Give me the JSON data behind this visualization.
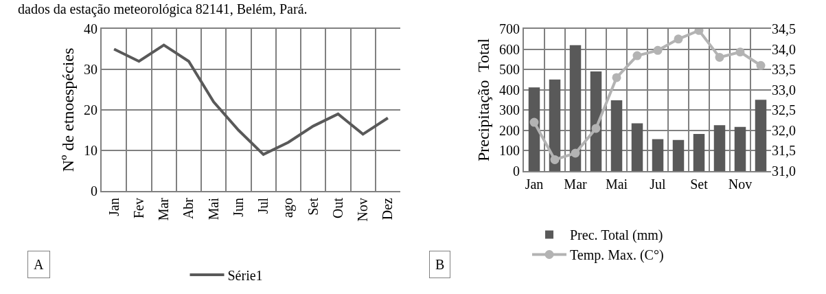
{
  "chart_data": [
    {
      "type": "line",
      "ylabel": "Nº de etnoespécies",
      "categories": [
        "Jan",
        "Fev",
        "Mar",
        "Abr",
        "Mai",
        "Jun",
        "Jul",
        "ago",
        "Set",
        "Out",
        "Nov",
        "Dez"
      ],
      "series": [
        {
          "name": "Série1",
          "color": "#595959",
          "values": [
            35,
            32,
            36,
            32,
            22,
            15,
            9,
            12,
            16,
            19,
            14,
            18
          ]
        }
      ],
      "ylim": [
        0,
        40
      ],
      "yticks": [
        0,
        10,
        20,
        30,
        40
      ],
      "grid": true,
      "legend": "bottom",
      "marker": "none",
      "line_style": "solid",
      "annotations": [
        "dados da estação meteorológica 82141, Belém, Pará.",
        "A"
      ]
    },
    {
      "type": "bar",
      "ylabel": "Precipitação  Total",
      "categories": [
        "Jan",
        null,
        "Mar",
        null,
        "Mai",
        null,
        "Jul",
        null,
        "Set",
        null,
        "Nov",
        null
      ],
      "series": [
        {
          "name": "Prec. Total (mm)",
          "color": "#595959",
          "type": "bar",
          "values": [
            412,
            451,
            620,
            490,
            348,
            235,
            157,
            153,
            183,
            226,
            217,
            351
          ]
        },
        {
          "name": "Temp. Max. (C°)",
          "color": "#b3b3b3",
          "type": "line",
          "axis": "y2",
          "values": [
            32.2,
            31.28,
            31.44,
            32.05,
            33.3,
            33.84,
            33.97,
            34.25,
            34.46,
            33.8,
            33.93,
            33.6
          ]
        }
      ],
      "ylim": [
        0,
        700
      ],
      "yticks": [
        0,
        100,
        200,
        300,
        400,
        500,
        600,
        700
      ],
      "y2lim": [
        31,
        34.5
      ],
      "y2ticks": [
        {
          "value": 31,
          "label": "31,0"
        },
        {
          "value": 31.5,
          "label": "31,5"
        },
        {
          "value": 32,
          "label": "32,0"
        },
        {
          "value": 32.5,
          "label": "32,5"
        },
        {
          "value": 33,
          "label": "33,0"
        },
        {
          "value": 33.5,
          "label": "33,5"
        },
        {
          "value": 34,
          "label": "34,0"
        },
        {
          "value": 34.5,
          "label": "34,5"
        }
      ],
      "grid": true,
      "legend": "bottom",
      "marker": "circle",
      "line_style": "solid",
      "annotations": [
        "B"
      ]
    }
  ]
}
